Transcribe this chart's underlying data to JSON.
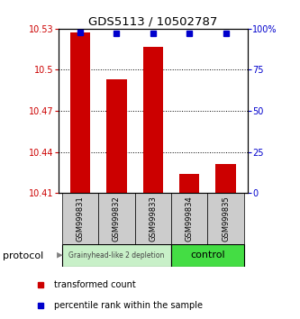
{
  "title": "GDS5113 / 10502787",
  "samples": [
    "GSM999831",
    "GSM999832",
    "GSM999833",
    "GSM999834",
    "GSM999835"
  ],
  "red_values": [
    10.527,
    10.493,
    10.517,
    10.424,
    10.431
  ],
  "blue_values": [
    98,
    97,
    97,
    97,
    97
  ],
  "ylim_left": [
    10.41,
    10.53
  ],
  "ylim_right": [
    0,
    100
  ],
  "yticks_left": [
    10.41,
    10.44,
    10.47,
    10.5,
    10.53
  ],
  "yticks_left_labels": [
    "10.41",
    "10.44",
    "10.47",
    "10.5",
    "10.53"
  ],
  "yticks_right": [
    0,
    25,
    50,
    75,
    100
  ],
  "yticks_right_labels": [
    "0",
    "25",
    "50",
    "75",
    "100%"
  ],
  "group1_label": "Grainyhead-like 2 depletion",
  "group2_label": "control",
  "group1_color": "#c8f0c8",
  "group2_color": "#44dd44",
  "group1_indices": [
    0,
    1,
    2
  ],
  "group2_indices": [
    3,
    4
  ],
  "bar_color": "#cc0000",
  "dot_color": "#0000cc",
  "legend_red_label": "transformed count",
  "legend_blue_label": "percentile rank within the sample",
  "protocol_label": "protocol",
  "tick_box_color": "#cccccc",
  "bar_width": 0.55
}
